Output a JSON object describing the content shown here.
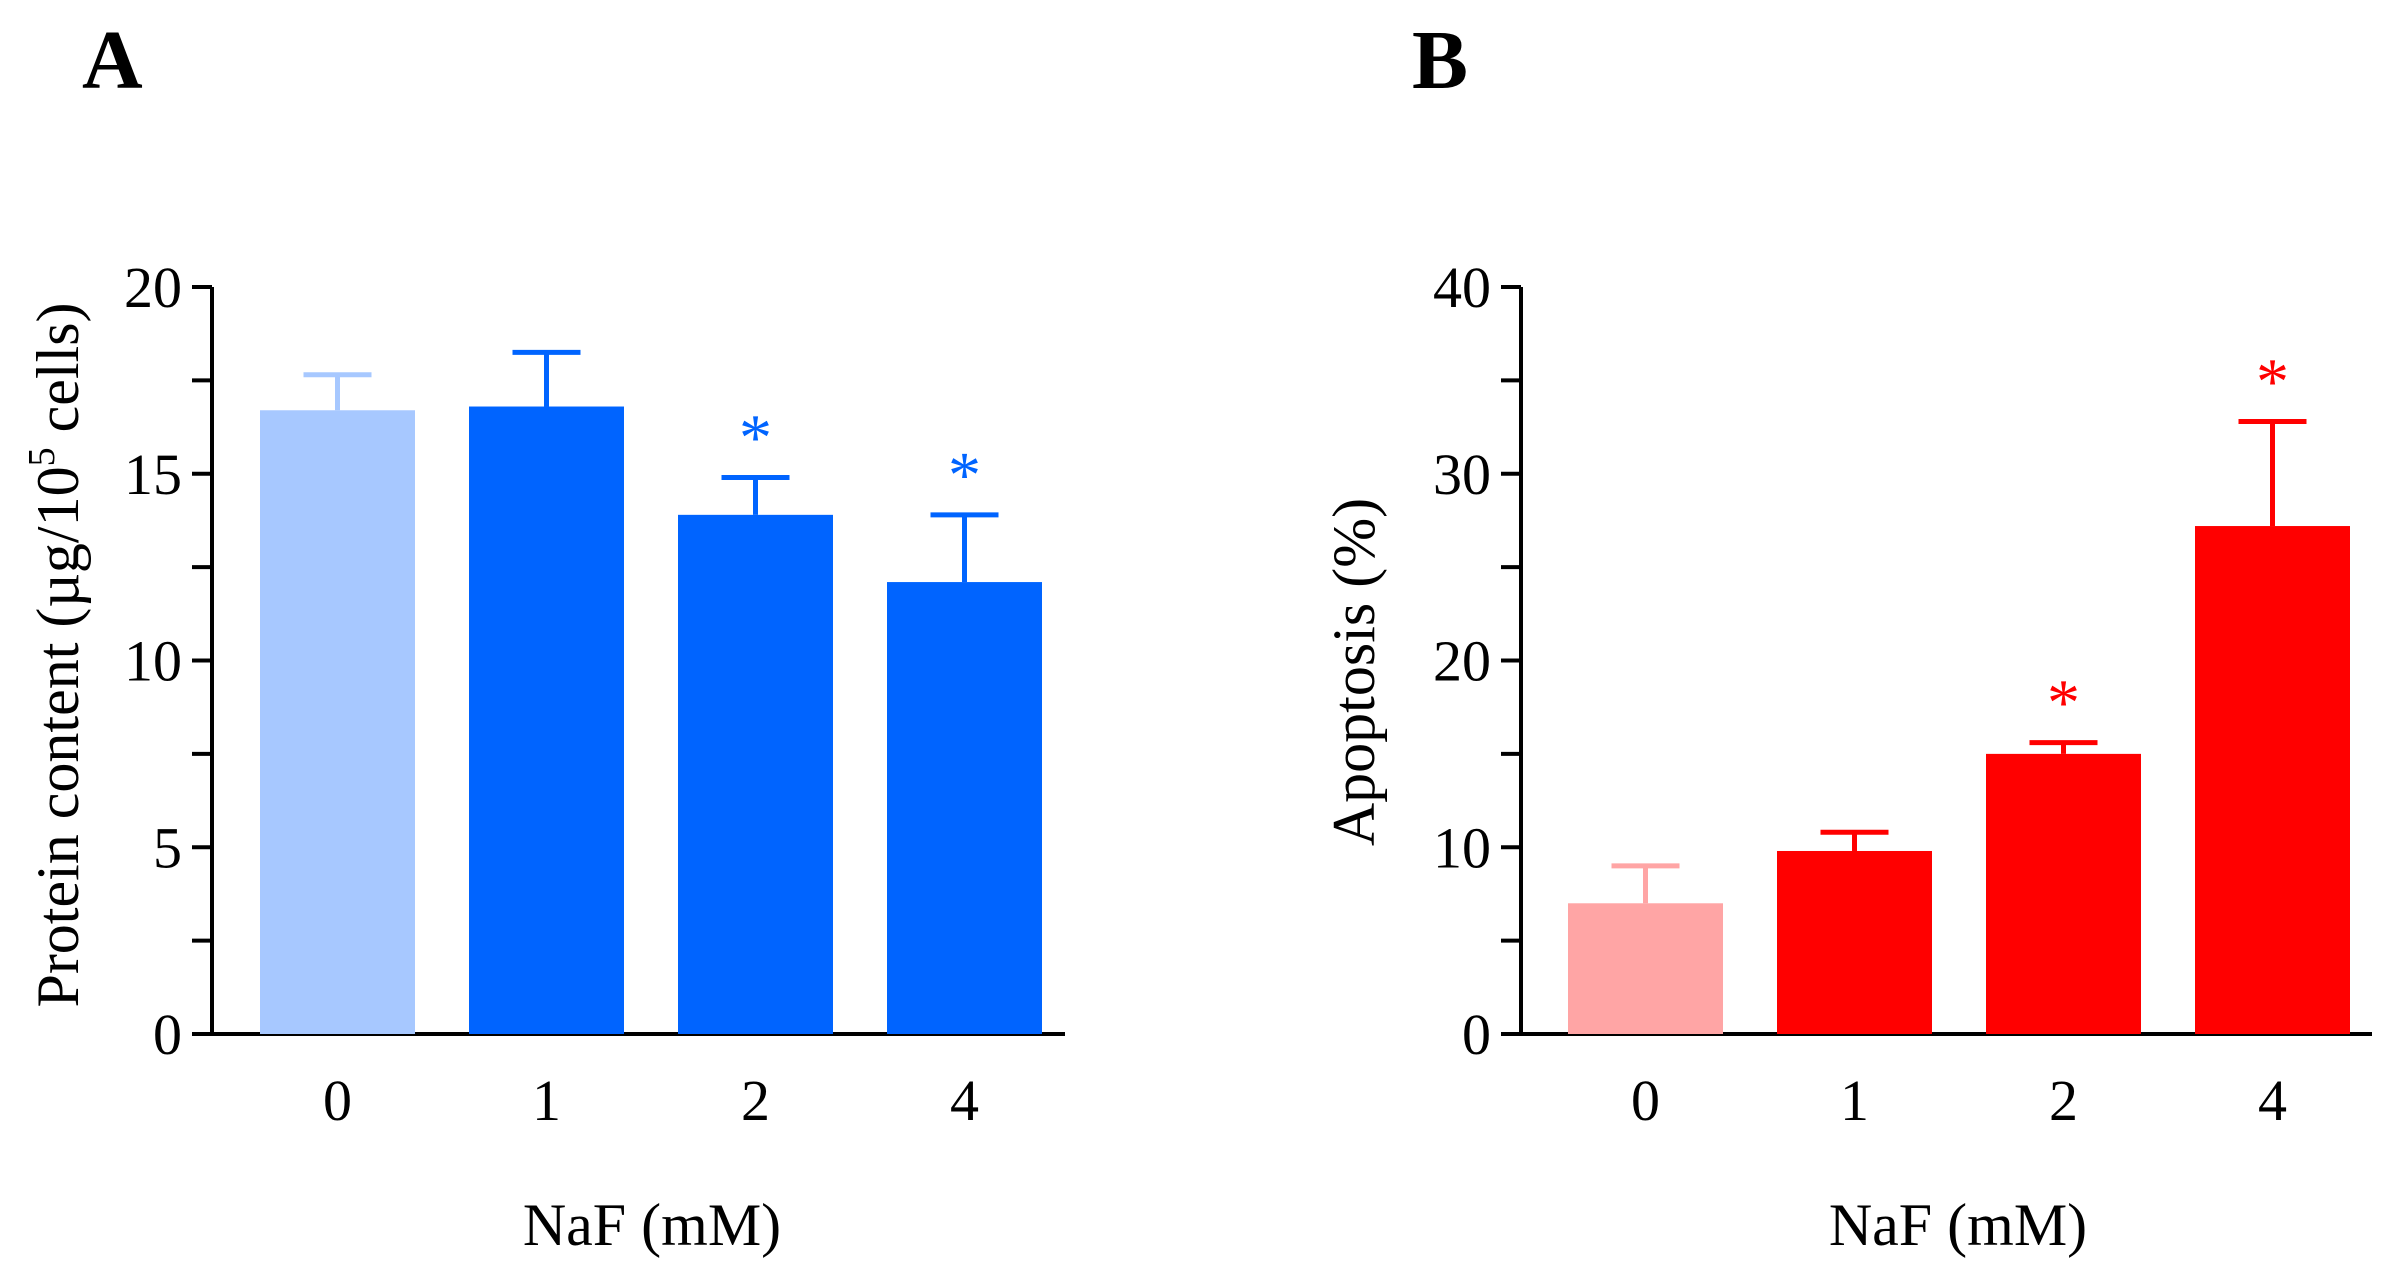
{
  "figure": {
    "panels": [
      {
        "id": "A",
        "panel_label": "A",
        "chart_data": {
          "type": "bar",
          "categories": [
            "0",
            "1",
            "2",
            "4"
          ],
          "values": [
            16.7,
            16.8,
            13.9,
            12.1
          ],
          "errors": [
            0.95,
            1.45,
            1.0,
            1.8
          ],
          "significant": [
            false,
            false,
            true,
            true
          ],
          "significance_marker": "*",
          "bar_colors": [
            "#a7c8ff",
            "#0064ff",
            "#0064ff",
            "#0064ff"
          ],
          "marker_color": "#0064ff",
          "xlabel": "NaF (mM)",
          "ylabel": "Protein content (µg/10",
          "ylabel_superscript": "5",
          "ylabel_suffix": " cells)",
          "ylim": [
            0,
            20
          ],
          "yticks": [
            0,
            5,
            10,
            15,
            20
          ],
          "yticklabels": [
            "0",
            "5",
            "10",
            "15",
            "20"
          ]
        }
      },
      {
        "id": "B",
        "panel_label": "B",
        "chart_data": {
          "type": "bar",
          "categories": [
            "0",
            "1",
            "2",
            "4"
          ],
          "values": [
            7.0,
            9.8,
            15.0,
            27.2
          ],
          "errors": [
            2.0,
            1.0,
            0.6,
            5.6
          ],
          "significant": [
            false,
            false,
            true,
            true
          ],
          "significance_marker": "*",
          "bar_colors": [
            "#ffa5a5",
            "#ff0000",
            "#ff0000",
            "#ff0000"
          ],
          "marker_color": "#ff0000",
          "xlabel": "NaF (mM)",
          "ylabel": "Apoptosis (%)",
          "ylim": [
            0,
            40
          ],
          "yticks": [
            0,
            10,
            20,
            30,
            40
          ],
          "yticklabels": [
            "0",
            "10",
            "20",
            "30",
            "40"
          ]
        }
      }
    ]
  }
}
